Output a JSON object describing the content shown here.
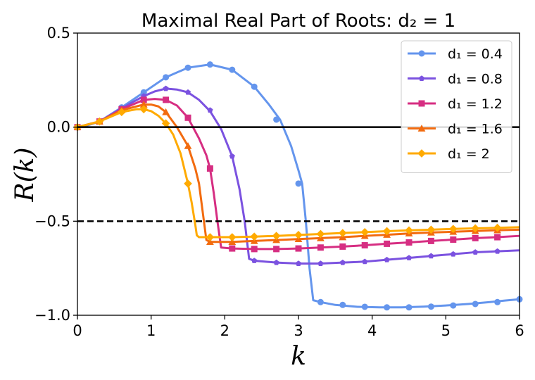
{
  "chart_data": {
    "type": "line",
    "title": "Maximal Real Part of Roots: d₂ = 1",
    "xlabel": "k",
    "ylabel": "R(k)",
    "xlim": [
      0,
      6
    ],
    "ylim": [
      -1.0,
      0.5
    ],
    "xticks": [
      "0",
      "1",
      "2",
      "3",
      "4",
      "5",
      "6"
    ],
    "yticks": [
      "−1.0",
      "−0.5",
      "0.0",
      "0.5"
    ],
    "reference_lines": [
      {
        "y": 0.0,
        "style": "solid"
      },
      {
        "y": -0.5,
        "style": "dashed"
      }
    ],
    "legend_position": "top-right",
    "grid": false,
    "series": [
      {
        "name": "d₁ = 0.4",
        "color": "#6495ed",
        "marker": "circle",
        "x": [
          0,
          0.1,
          0.3,
          0.6,
          0.9,
          1.2,
          1.5,
          1.8,
          2.1,
          2.4,
          2.6,
          2.75,
          2.9,
          3.0,
          3.05,
          3.1,
          3.15,
          3.2,
          3.3,
          3.5,
          3.8,
          4.1,
          4.4,
          4.7,
          5.0,
          5.3,
          5.6,
          5.8,
          6.0
        ],
        "y": [
          0,
          0.005,
          0.03,
          0.105,
          0.185,
          0.265,
          0.316,
          0.333,
          0.305,
          0.215,
          0.12,
          0.04,
          -0.1,
          -0.23,
          -0.3,
          -0.5,
          -0.75,
          -0.92,
          -0.93,
          -0.945,
          -0.955,
          -0.958,
          -0.958,
          -0.954,
          -0.948,
          -0.94,
          -0.93,
          -0.922,
          -0.915
        ],
        "marker_x": [
          0,
          0.3,
          0.6,
          0.9,
          1.2,
          1.5,
          1.8,
          2.1,
          2.4,
          2.7,
          3.0,
          3.3,
          3.6,
          3.9,
          4.2,
          4.5,
          4.8,
          5.1,
          5.4,
          5.7,
          6.0
        ],
        "marker_y": [
          0,
          0.03,
          0.105,
          0.185,
          0.265,
          0.316,
          0.333,
          0.305,
          0.215,
          0.04,
          -0.3,
          -0.93,
          -0.945,
          -0.955,
          -0.958,
          -0.958,
          -0.954,
          -0.948,
          -0.94,
          -0.93,
          -0.915
        ]
      },
      {
        "name": "d₁ = 0.8",
        "color": "#7b52e0",
        "marker": "pentagon",
        "x": [
          0,
          0.3,
          0.6,
          0.9,
          1.05,
          1.2,
          1.35,
          1.5,
          1.65,
          1.8,
          1.95,
          2.1,
          2.2,
          2.27,
          2.3,
          2.33,
          2.4,
          2.7,
          3.0,
          3.3,
          3.6,
          3.9,
          4.2,
          4.5,
          4.8,
          5.1,
          5.4,
          5.7,
          6.0
        ],
        "y": [
          0,
          0.03,
          0.1,
          0.165,
          0.19,
          0.205,
          0.2,
          0.185,
          0.145,
          0.085,
          -0.01,
          -0.155,
          -0.33,
          -0.5,
          -0.6,
          -0.7,
          -0.71,
          -0.72,
          -0.725,
          -0.725,
          -0.72,
          -0.715,
          -0.705,
          -0.695,
          -0.685,
          -0.675,
          -0.665,
          -0.66,
          -0.655
        ],
        "marker_x": [
          0,
          0.3,
          0.6,
          0.9,
          1.2,
          1.5,
          1.8,
          2.1,
          2.4,
          2.7,
          3.0,
          3.3,
          3.6,
          3.9,
          4.2,
          4.5,
          4.8,
          5.1,
          5.4,
          5.7
        ],
        "marker_y": [
          0,
          0.03,
          0.1,
          0.165,
          0.205,
          0.185,
          0.09,
          -0.155,
          -0.71,
          -0.72,
          -0.725,
          -0.725,
          -0.72,
          -0.715,
          -0.705,
          -0.695,
          -0.685,
          -0.675,
          -0.665,
          -0.66
        ]
      },
      {
        "name": "d₁ = 1.2",
        "color": "#d62e82",
        "marker": "square",
        "x": [
          0,
          0.3,
          0.6,
          0.9,
          1.05,
          1.2,
          1.35,
          1.5,
          1.65,
          1.75,
          1.8,
          1.85,
          1.9,
          1.95,
          2.1,
          2.4,
          2.7,
          3.0,
          3.3,
          3.6,
          3.9,
          4.2,
          4.5,
          4.8,
          5.1,
          5.4,
          5.7,
          6.0
        ],
        "y": [
          0,
          0.03,
          0.095,
          0.145,
          0.15,
          0.145,
          0.115,
          0.05,
          -0.06,
          -0.15,
          -0.22,
          -0.35,
          -0.5,
          -0.64,
          -0.645,
          -0.648,
          -0.648,
          -0.645,
          -0.64,
          -0.635,
          -0.628,
          -0.62,
          -0.613,
          -0.605,
          -0.598,
          -0.59,
          -0.585,
          -0.578
        ],
        "marker_x": [
          0,
          0.3,
          0.6,
          0.9,
          1.2,
          1.5,
          1.8,
          2.1,
          2.4,
          2.7,
          3.0,
          3.3,
          3.6,
          3.9,
          4.2,
          4.5,
          4.8,
          5.1,
          5.4,
          5.7
        ],
        "marker_y": [
          0,
          0.03,
          0.095,
          0.145,
          0.145,
          0.05,
          -0.22,
          -0.645,
          -0.648,
          -0.648,
          -0.645,
          -0.64,
          -0.635,
          -0.628,
          -0.62,
          -0.613,
          -0.605,
          -0.598,
          -0.59,
          -0.585
        ]
      },
      {
        "name": "d₁ = 1.6",
        "color": "#f26b0f",
        "marker": "triangle",
        "x": [
          0,
          0.3,
          0.6,
          0.9,
          1.0,
          1.1,
          1.2,
          1.35,
          1.5,
          1.6,
          1.65,
          1.7,
          1.75,
          1.8,
          2.1,
          2.4,
          2.7,
          3.0,
          3.3,
          3.6,
          3.9,
          4.2,
          4.5,
          4.8,
          5.1,
          5.4,
          5.7,
          6.0
        ],
        "y": [
          0,
          0.03,
          0.09,
          0.12,
          0.12,
          0.11,
          0.08,
          0.0,
          -0.1,
          -0.22,
          -0.3,
          -0.45,
          -0.6,
          -0.61,
          -0.61,
          -0.605,
          -0.6,
          -0.595,
          -0.59,
          -0.585,
          -0.578,
          -0.572,
          -0.565,
          -0.56,
          -0.556,
          -0.552,
          -0.548,
          -0.545
        ],
        "marker_x": [
          0,
          0.3,
          0.6,
          0.9,
          1.2,
          1.5,
          1.8,
          2.1,
          2.4,
          2.7,
          3.0,
          3.3,
          3.6,
          3.9,
          4.2,
          4.5,
          4.8,
          5.1,
          5.4,
          5.7
        ],
        "marker_y": [
          0,
          0.03,
          0.09,
          0.12,
          0.08,
          -0.1,
          -0.61,
          -0.61,
          -0.605,
          -0.6,
          -0.595,
          -0.59,
          -0.585,
          -0.578,
          -0.572,
          -0.565,
          -0.56,
          -0.556,
          -0.552,
          -0.548
        ]
      },
      {
        "name": "d₁ = 2",
        "color": "#ffaa00",
        "marker": "diamond",
        "x": [
          0,
          0.3,
          0.6,
          0.8,
          0.9,
          1.0,
          1.1,
          1.2,
          1.3,
          1.4,
          1.5,
          1.55,
          1.6,
          1.62,
          1.65,
          1.8,
          2.1,
          2.4,
          2.7,
          3.0,
          3.3,
          3.6,
          3.9,
          4.2,
          4.5,
          4.8,
          5.1,
          5.4,
          5.7,
          6.0
        ],
        "y": [
          0,
          0.03,
          0.08,
          0.095,
          0.095,
          0.085,
          0.06,
          0.02,
          -0.04,
          -0.14,
          -0.3,
          -0.4,
          -0.52,
          -0.575,
          -0.585,
          -0.585,
          -0.585,
          -0.582,
          -0.578,
          -0.573,
          -0.568,
          -0.563,
          -0.558,
          -0.553,
          -0.549,
          -0.545,
          -0.541,
          -0.538,
          -0.535,
          -0.532
        ],
        "marker_x": [
          0,
          0.3,
          0.6,
          0.9,
          1.2,
          1.5,
          1.8,
          2.1,
          2.4,
          2.7,
          3.0,
          3.3,
          3.6,
          3.9,
          4.2,
          4.5,
          4.8,
          5.1,
          5.4,
          5.7
        ],
        "marker_y": [
          0,
          0.03,
          0.08,
          0.095,
          0.02,
          -0.3,
          -0.585,
          -0.585,
          -0.582,
          -0.578,
          -0.573,
          -0.568,
          -0.563,
          -0.558,
          -0.553,
          -0.549,
          -0.545,
          -0.541,
          -0.538,
          -0.535
        ]
      }
    ]
  }
}
